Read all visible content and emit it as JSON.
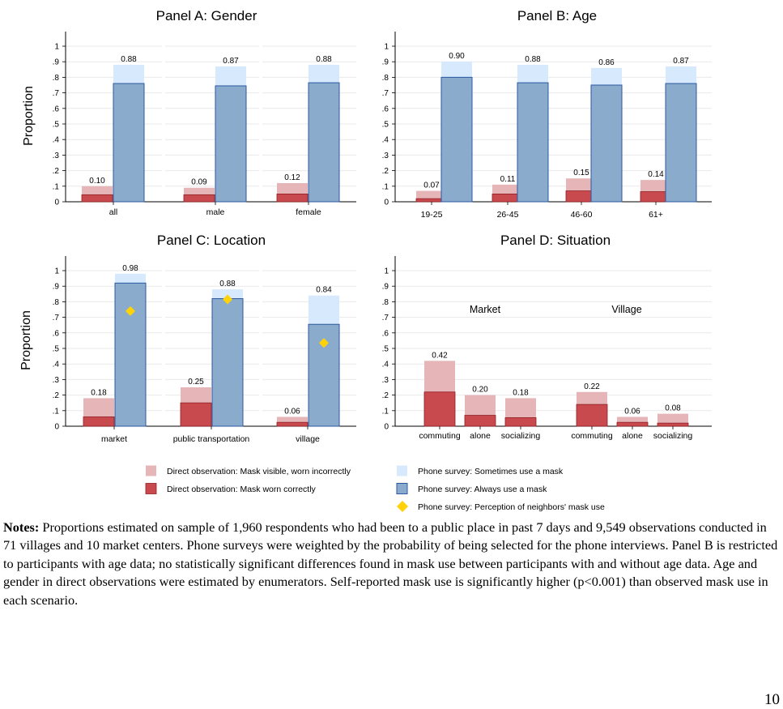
{
  "figure": {
    "ylabel": "Proportion",
    "yticks": [
      "0",
      ".1",
      ".2",
      ".3",
      ".4",
      ".5",
      ".6",
      ".7",
      ".8",
      ".9",
      "1"
    ],
    "colors": {
      "observed_incorrect": "#e6b5b7",
      "observed_correct": "#c94a4e",
      "phone_sometimes": "#d6e9fd",
      "phone_always": "#8aabcb",
      "phone_always_border": "#2c5aa0",
      "neighbors": "#ffd20a",
      "grid": "#e9e9e9"
    }
  },
  "chart_data": [
    {
      "type": "bar",
      "title": "Panel A: Gender",
      "ylabel": "Proportion",
      "ylim": [
        0,
        1
      ],
      "grid": true,
      "categories": [
        "all",
        "male",
        "female"
      ],
      "series": [
        {
          "name": "Direct observation: Mask visible, worn incorrectly",
          "values": [
            0.1,
            0.09,
            0.12
          ]
        },
        {
          "name": "Direct observation: Mask worn correctly",
          "values": [
            0.045,
            0.045,
            0.05
          ]
        },
        {
          "name": "Phone survey: Sometimes use a mask",
          "values": [
            0.88,
            0.87,
            0.88
          ]
        },
        {
          "name": "Phone survey: Always use a mask",
          "values": [
            0.76,
            0.745,
            0.765
          ]
        }
      ],
      "data_labels": {
        "observed": [
          "0.10",
          "0.09",
          "0.12"
        ],
        "phone": [
          "0.88",
          "0.87",
          "0.88"
        ]
      }
    },
    {
      "type": "bar",
      "title": "Panel B: Age",
      "ylabel": "",
      "ylim": [
        0,
        1
      ],
      "grid": true,
      "categories": [
        "19-25",
        "26-45",
        "46-60",
        "61+"
      ],
      "series": [
        {
          "name": "Direct observation: Mask visible, worn incorrectly",
          "values": [
            0.07,
            0.11,
            0.15,
            0.14
          ]
        },
        {
          "name": "Direct observation: Mask worn correctly",
          "values": [
            0.02,
            0.05,
            0.07,
            0.065
          ]
        },
        {
          "name": "Phone survey: Sometimes use a mask",
          "values": [
            0.9,
            0.88,
            0.86,
            0.87
          ]
        },
        {
          "name": "Phone survey: Always use a mask",
          "values": [
            0.8,
            0.765,
            0.75,
            0.76
          ]
        }
      ],
      "data_labels": {
        "observed": [
          "0.07",
          "0.11",
          "0.15",
          "0.14"
        ],
        "phone": [
          "0.90",
          "0.88",
          "0.86",
          "0.87"
        ]
      }
    },
    {
      "type": "bar",
      "title": "Panel C: Location",
      "ylabel": "Proportion",
      "ylim": [
        0,
        1
      ],
      "grid": true,
      "categories": [
        "market",
        "public transportation",
        "village"
      ],
      "series": [
        {
          "name": "Direct observation: Mask visible, worn incorrectly",
          "values": [
            0.18,
            0.25,
            0.06
          ]
        },
        {
          "name": "Direct observation: Mask worn correctly",
          "values": [
            0.06,
            0.15,
            0.025
          ]
        },
        {
          "name": "Phone survey: Sometimes use a mask",
          "values": [
            0.98,
            0.88,
            0.84
          ]
        },
        {
          "name": "Phone survey: Always use a mask",
          "values": [
            0.92,
            0.82,
            0.655
          ]
        },
        {
          "name": "Phone survey: Perception of neighbors' mask use",
          "values": [
            0.74,
            0.815,
            0.535
          ]
        }
      ],
      "data_labels": {
        "observed": [
          "0.18",
          "0.25",
          "0.06"
        ],
        "phone": [
          "0.98",
          "0.88",
          "0.84"
        ]
      }
    },
    {
      "type": "bar",
      "title": "Panel D: Situation",
      "ylabel": "",
      "ylim": [
        0,
        1
      ],
      "grid": true,
      "groups": [
        "Market",
        "Village"
      ],
      "categories": [
        "commuting",
        "alone",
        "socializing",
        "commuting",
        "alone",
        "socializing"
      ],
      "series": [
        {
          "name": "Direct observation: Mask visible, worn incorrectly",
          "values": [
            0.42,
            0.2,
            0.18,
            0.22,
            0.06,
            0.08
          ]
        },
        {
          "name": "Direct observation: Mask worn correctly",
          "values": [
            0.22,
            0.07,
            0.055,
            0.14,
            0.025,
            0.02
          ]
        }
      ],
      "data_labels": {
        "observed": [
          "0.42",
          "0.20",
          "0.18",
          "0.22",
          "0.06",
          "0.08"
        ]
      }
    }
  ],
  "legend": [
    {
      "label": "Direct observation: Mask visible, worn incorrectly",
      "key": "observed_incorrect",
      "shape": "square"
    },
    {
      "label": "Phone survey: Sometimes use a mask",
      "key": "phone_sometimes",
      "shape": "square"
    },
    {
      "label": "Direct observation: Mask worn correctly",
      "key": "observed_correct",
      "shape": "square"
    },
    {
      "label": "Phone survey: Always use a mask",
      "key": "phone_always",
      "shape": "square"
    },
    {
      "label": "Phone survey: Perception of neighbors' mask use",
      "key": "neighbors",
      "shape": "diamond"
    }
  ],
  "notes": {
    "label": "Notes:",
    "text": " Proportions estimated on sample of 1,960 respondents who had been to a public place in past 7 days and 9,549 observations conducted in 71 villages and 10 market centers. Phone surveys were weighted by the probability of being selected for the phone interviews. Panel B is restricted to participants with age data; no statistically significant differences found in mask use between participants with and without age data. Age and gender in direct observations were estimated by enumerators. Self-reported mask use is significantly higher (p<0.001) than observed mask use in each scenario."
  },
  "page_number": "10"
}
